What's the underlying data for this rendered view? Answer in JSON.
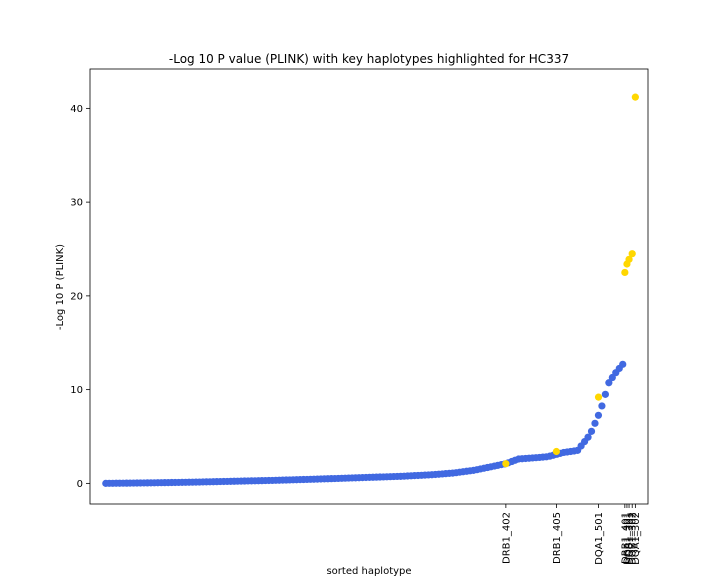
{
  "chart_data": {
    "type": "scatter",
    "title": "-Log 10 P value (PLINK) with key haplotypes highlighted for HC337",
    "xlabel": "sorted haplotype",
    "ylabel": "-Log 10 P (PLINK)",
    "xlim": [
      -15,
      515
    ],
    "ylim": [
      -2.2,
      44.2
    ],
    "yticks": [
      0,
      10,
      20,
      30,
      40
    ],
    "grid": false,
    "colors": {
      "base": "#4169e1",
      "highlight": "#ffd700"
    },
    "curve_points": [
      [
        0,
        0.0
      ],
      [
        40,
        0.05
      ],
      [
        80,
        0.12
      ],
      [
        120,
        0.22
      ],
      [
        160,
        0.32
      ],
      [
        200,
        0.45
      ],
      [
        240,
        0.6
      ],
      [
        280,
        0.75
      ],
      [
        310,
        0.92
      ],
      [
        330,
        1.1
      ],
      [
        350,
        1.4
      ],
      [
        365,
        1.75
      ],
      [
        380,
        2.1
      ],
      [
        392,
        2.6
      ],
      [
        410,
        2.75
      ],
      [
        420,
        2.85
      ],
      [
        435,
        3.3
      ],
      [
        448,
        3.5
      ],
      [
        460,
        5.2
      ],
      [
        470,
        7.8
      ],
      [
        478,
        10.8
      ],
      [
        485,
        11.9
      ],
      [
        491,
        12.7
      ]
    ],
    "base_count": 150,
    "highlights": [
      {
        "label": "DRB1_402",
        "x": 380,
        "y": 2.1
      },
      {
        "label": "DRB1_405",
        "x": 428,
        "y": 3.4
      },
      {
        "label": "DQA1_501",
        "x": 468,
        "y": 9.2
      },
      {
        "label": "DRB1_401",
        "x": 493,
        "y": 22.5
      },
      {
        "label": "DQA1_301",
        "x": 495,
        "y": 23.4
      },
      {
        "label": "DQB1_301",
        "x": 497,
        "y": 23.9
      },
      {
        "label": "DQB1_302",
        "x": 500,
        "y": 24.5
      },
      {
        "label": "DQA1_302",
        "x": 503,
        "y": 41.2
      }
    ]
  }
}
